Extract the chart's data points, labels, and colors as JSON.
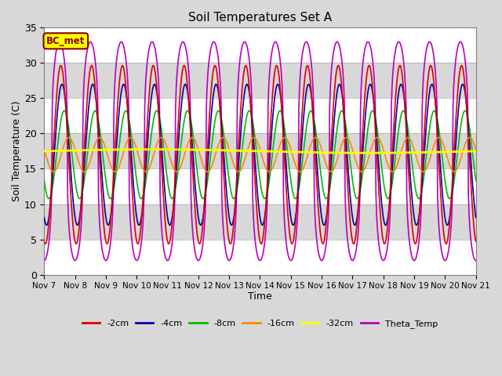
{
  "title": "Soil Temperatures Set A",
  "xlabel": "Time",
  "ylabel": "Soil Temperature (C)",
  "ylim": [
    0,
    35
  ],
  "x_tick_labels": [
    "Nov 7",
    "Nov 8",
    "Nov 9",
    "Nov 10",
    "Nov 11",
    "Nov 12",
    "Nov 13",
    "Nov 14",
    "Nov 15",
    "Nov 16",
    "Nov 17",
    "Nov 18",
    "Nov 19",
    "Nov 20",
    "Nov 21"
  ],
  "annotation_text": "BC_met",
  "annotation_bg": "#FFFF00",
  "annotation_border": "#8B0000",
  "background_color": "#D8D8D8",
  "hband_color": "#FFFFFF",
  "legend_labels": [
    "-2cm",
    "-4cm",
    "-8cm",
    "-16cm",
    "-32cm",
    "Theta_Temp"
  ],
  "line_colors": [
    "#DD0000",
    "#0000AA",
    "#00BB00",
    "#FF8800",
    "#FFFF00",
    "#BB00BB"
  ],
  "line_widths": [
    1.2,
    1.2,
    1.2,
    1.2,
    2.0,
    1.2
  ],
  "n_days": 14,
  "series_params": {
    "mean": 17.0,
    "surface_amp": 16.0,
    "damping_depth": 8.5,
    "depths": [
      2,
      4,
      8,
      16,
      32
    ],
    "theta_mean": 17.5,
    "theta_amp": 15.5,
    "theta_sharpness": 3.0,
    "yellow_mean": 17.5,
    "yellow_amp": 0.25,
    "yellow_period_days": 14.0
  }
}
